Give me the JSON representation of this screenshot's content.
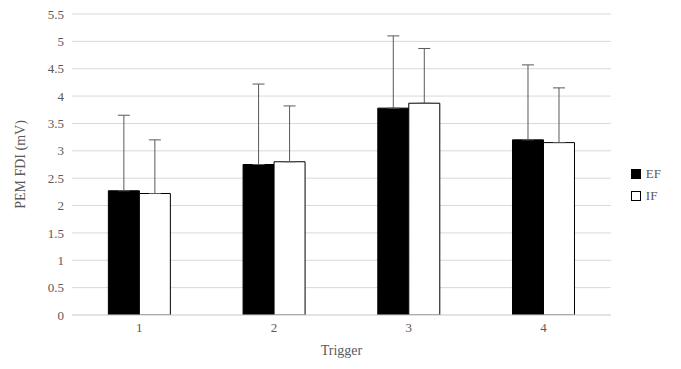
{
  "chart_data": {
    "type": "bar",
    "x_label": "Trigger",
    "y_label": "PEM FDI (mV)",
    "categories": [
      "1",
      "2",
      "3",
      "4"
    ],
    "series": [
      {
        "name": "EF",
        "color": "#000000",
        "values": [
          2.27,
          2.75,
          3.78,
          3.2
        ],
        "errors": [
          1.38,
          1.47,
          1.32,
          1.37
        ]
      },
      {
        "name": "IF",
        "color": "#ffffff",
        "values": [
          2.22,
          2.8,
          3.87,
          3.15
        ],
        "errors": [
          0.98,
          1.02,
          1.0,
          1.0
        ]
      }
    ],
    "ylim": [
      0,
      5.5
    ],
    "yticks": [
      0,
      0.5,
      1,
      1.5,
      2,
      2.5,
      3,
      3.5,
      4,
      4.5,
      5,
      5.5
    ],
    "grid": true,
    "legend": "right"
  }
}
